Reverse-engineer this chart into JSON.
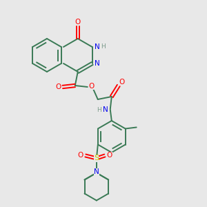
{
  "background_color": "#e8e8e8",
  "bond_color": "#3a7a55",
  "atom_colors": {
    "O": "#ff0000",
    "N": "#0000ee",
    "H": "#7a9a8a",
    "S": "#cccc00",
    "C": "#3a7a55"
  },
  "bond_lw": 1.4,
  "font_size": 7.5
}
